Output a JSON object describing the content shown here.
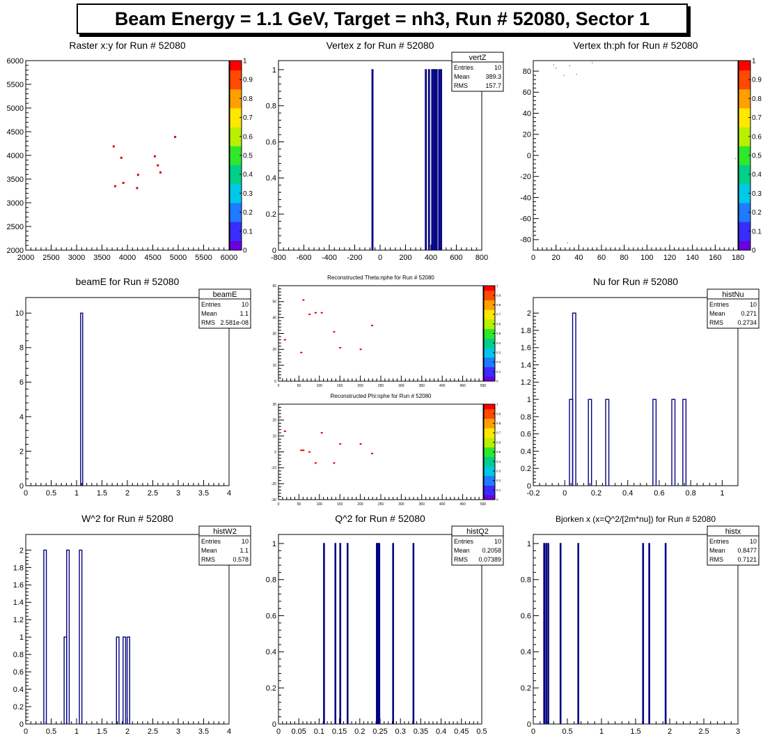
{
  "banner": "Beam Energy = 1.1 GeV, Target = nh3, Run # 52080, Sector 1",
  "colors": {
    "line": "#000080",
    "marker": "#e00000",
    "frame": "#000000"
  },
  "palette_ticks": [
    "0",
    "0.1",
    "0.2",
    "0.3",
    "0.4",
    "0.5",
    "0.6",
    "0.7",
    "0.8",
    "0.9",
    "1"
  ],
  "chart_data": [
    {
      "id": "raster",
      "type": "heatmap",
      "title": "Raster x:y for Run # 52080",
      "xlim": [
        2000,
        6000
      ],
      "ylim": [
        2000,
        6000
      ],
      "xticks": [
        "2000",
        "2500",
        "3000",
        "3500",
        "4000",
        "4500",
        "5000",
        "5500",
        "6000"
      ],
      "yticks": [
        "2000",
        "2500",
        "3000",
        "3500",
        "4000",
        "4500",
        "5000",
        "5500",
        "6000"
      ],
      "points": [
        [
          3730,
          4190
        ],
        [
          3880,
          3950
        ],
        [
          3760,
          3350
        ],
        [
          3920,
          3420
        ],
        [
          4190,
          3310
        ],
        [
          4210,
          3590
        ],
        [
          4540,
          3980
        ],
        [
          4600,
          3790
        ],
        [
          4650,
          3640
        ],
        [
          4940,
          4390
        ]
      ],
      "palette": true
    },
    {
      "id": "vertz",
      "type": "bar",
      "title": "Vertex z for Run # 52080",
      "xlim": [
        -800,
        800
      ],
      "ylim": [
        0,
        1.05
      ],
      "xticks": [
        "-800",
        "-600",
        "-400",
        "-200",
        "0",
        "200",
        "400",
        "600",
        "800"
      ],
      "yticks": [
        "0",
        "0.2",
        "0.4",
        "0.6",
        "0.8",
        "1"
      ],
      "bins": [
        -60,
        360,
        385,
        410,
        425,
        435,
        445,
        465,
        480
      ],
      "values": [
        1,
        1,
        1,
        1,
        1,
        1,
        1,
        1,
        1
      ],
      "binwidth": 8,
      "stats": {
        "name": "vertZ",
        "rows": [
          [
            "Entries",
            "10"
          ],
          [
            "Mean",
            "389.3"
          ],
          [
            "RMS",
            "157.7"
          ]
        ]
      }
    },
    {
      "id": "thph",
      "type": "scatter",
      "title": "Vertex th:ph for Run # 52080",
      "xlim": [
        0,
        180
      ],
      "ylim": [
        -90,
        90
      ],
      "xticks": [
        "0",
        "20",
        "40",
        "60",
        "80",
        "100",
        "120",
        "140",
        "160",
        "180"
      ],
      "yticks": [
        "-80",
        "-60",
        "-40",
        "-20",
        "0",
        "20",
        "40",
        "60",
        "80"
      ],
      "points": [
        [
          18,
          86
        ],
        [
          20,
          83
        ],
        [
          32,
          85
        ],
        [
          38,
          77
        ],
        [
          52,
          88
        ],
        [
          27,
          76
        ],
        [
          30,
          -83
        ],
        [
          178,
          -3
        ]
      ],
      "palette": true
    },
    {
      "id": "beamE",
      "type": "bar",
      "title": "beamE for Run # 52080",
      "xlim": [
        0,
        4
      ],
      "ylim": [
        0,
        10.9
      ],
      "xticks": [
        "0",
        "0.5",
        "1",
        "1.5",
        "2",
        "2.5",
        "3",
        "3.5",
        "4"
      ],
      "yticks": [
        "0",
        "2",
        "4",
        "6",
        "8",
        "10"
      ],
      "bins": [
        1.1
      ],
      "values": [
        10
      ],
      "binwidth": 0.04,
      "stats": {
        "name": "beamE",
        "rows": [
          [
            "Entries",
            "10"
          ],
          [
            "Mean",
            "1.1"
          ],
          [
            "RMS",
            "2.581e-08"
          ]
        ]
      }
    },
    {
      "id": "thetanphe",
      "type": "heatmap",
      "title": "Reconstructed Theta:nphe for Run # 52080",
      "xlim": [
        0,
        500
      ],
      "ylim": [
        0,
        60
      ],
      "xticks": [
        "0",
        "50",
        "100",
        "150",
        "200",
        "250",
        "300",
        "350",
        "400",
        "450",
        "500"
      ],
      "yticks": [
        "0",
        "10",
        "20",
        "30",
        "40",
        "50",
        "60"
      ],
      "points": [
        [
          15,
          26
        ],
        [
          55,
          18
        ],
        [
          60,
          51
        ],
        [
          75,
          42
        ],
        [
          90,
          43
        ],
        [
          105,
          43
        ],
        [
          135,
          31
        ],
        [
          150,
          21
        ],
        [
          200,
          20
        ],
        [
          228,
          35
        ]
      ],
      "palette": true
    },
    {
      "id": "phinphe",
      "type": "heatmap",
      "title": "Reconstructed Phi:nphe for Run # 52080",
      "xlim": [
        0,
        500
      ],
      "ylim": [
        -30,
        30
      ],
      "xticks": [
        "0",
        "50",
        "100",
        "150",
        "200",
        "250",
        "300",
        "350",
        "400",
        "450",
        "500"
      ],
      "yticks": [
        "-30",
        "-20",
        "-10",
        "0",
        "10",
        "20",
        "30"
      ],
      "points": [
        [
          15,
          13
        ],
        [
          55,
          1
        ],
        [
          60,
          1
        ],
        [
          75,
          0
        ],
        [
          90,
          -7
        ],
        [
          105,
          12
        ],
        [
          135,
          -7
        ],
        [
          150,
          5
        ],
        [
          200,
          5
        ],
        [
          228,
          -1
        ]
      ],
      "palette": true
    },
    {
      "id": "nu",
      "type": "bar",
      "title": "Nu for Run # 52080",
      "xlim": [
        -0.2,
        1.1
      ],
      "ylim": [
        0,
        2.18
      ],
      "xticks": [
        "-0.2",
        "0",
        "0.2",
        "0.4",
        "0.6",
        "0.8",
        "1"
      ],
      "yticks": [
        "0",
        "0.2",
        "0.4",
        "0.6",
        "0.8",
        "1",
        "1.2",
        "1.4",
        "1.6",
        "1.8",
        "2"
      ],
      "bins": [
        0.04,
        0.06,
        0.16,
        0.27,
        0.57,
        0.69,
        0.76
      ],
      "values": [
        1,
        2,
        1,
        1,
        1,
        1,
        1
      ],
      "binwidth": 0.02,
      "stats": {
        "name": "histNu",
        "rows": [
          [
            "Entries",
            "10"
          ],
          [
            "Mean",
            "0.271"
          ],
          [
            "RMS",
            "0.2734"
          ]
        ]
      }
    },
    {
      "id": "w2",
      "type": "bar",
      "title": "W^2 for Run # 52080",
      "xlim": [
        0,
        4
      ],
      "ylim": [
        0,
        2.18
      ],
      "xticks": [
        "0",
        "0.5",
        "1",
        "1.5",
        "2",
        "2.5",
        "3",
        "3.5",
        "4"
      ],
      "yticks": [
        "0",
        "0.2",
        "0.4",
        "0.6",
        "0.8",
        "1",
        "1.2",
        "1.4",
        "1.6",
        "1.8",
        "2"
      ],
      "bins": [
        0.38,
        0.78,
        0.83,
        1.08,
        1.81,
        1.94,
        2.02
      ],
      "values": [
        2,
        1,
        2,
        2,
        1,
        1,
        1
      ],
      "binwidth": 0.05,
      "stats": {
        "name": "histW2",
        "rows": [
          [
            "Entries",
            "10"
          ],
          [
            "Mean",
            "1.1"
          ],
          [
            "RMS",
            "0.578"
          ]
        ]
      }
    },
    {
      "id": "q2",
      "type": "bar",
      "title": "Q^2 for Run # 52080",
      "xlim": [
        0,
        0.5
      ],
      "ylim": [
        0,
        1.05
      ],
      "xticks": [
        "0",
        "0.05",
        "0.1",
        "0.15",
        "0.2",
        "0.25",
        "0.3",
        "0.35",
        "0.4",
        "0.45",
        "0.5"
      ],
      "yticks": [
        "0",
        "0.2",
        "0.4",
        "0.6",
        "0.8",
        "1"
      ],
      "bins": [
        0.112,
        0.14,
        0.152,
        0.17,
        0.242,
        0.244,
        0.248,
        0.282,
        0.332
      ],
      "values": [
        1,
        1,
        1,
        1,
        1,
        1,
        1,
        1,
        1
      ],
      "binwidth": 0.002,
      "stats": {
        "name": "histQ2",
        "rows": [
          [
            "Entries",
            "10"
          ],
          [
            "Mean",
            "0.2058"
          ],
          [
            "RMS",
            "0.07389"
          ]
        ]
      }
    },
    {
      "id": "bjx",
      "type": "bar",
      "title": "Bjorken x  (x=Q^2/[2m*nu]) for Run # 52080",
      "xlim": [
        0,
        3
      ],
      "ylim": [
        0,
        1.05
      ],
      "xticks": [
        "0",
        "0.5",
        "1",
        "1.5",
        "2",
        "2.5",
        "3"
      ],
      "yticks": [
        "0",
        "0.2",
        "0.4",
        "0.6",
        "0.8",
        "1"
      ],
      "bins": [
        0.16,
        0.19,
        0.22,
        0.4,
        0.66,
        1.61,
        1.7,
        1.94
      ],
      "values": [
        1,
        1,
        1,
        1,
        1,
        1,
        1,
        1
      ],
      "binwidth": 0.012,
      "stats": {
        "name": "histx",
        "rows": [
          [
            "Entries",
            "10"
          ],
          [
            "Mean",
            "0.8477"
          ],
          [
            "RMS",
            "0.7121"
          ]
        ]
      }
    }
  ]
}
